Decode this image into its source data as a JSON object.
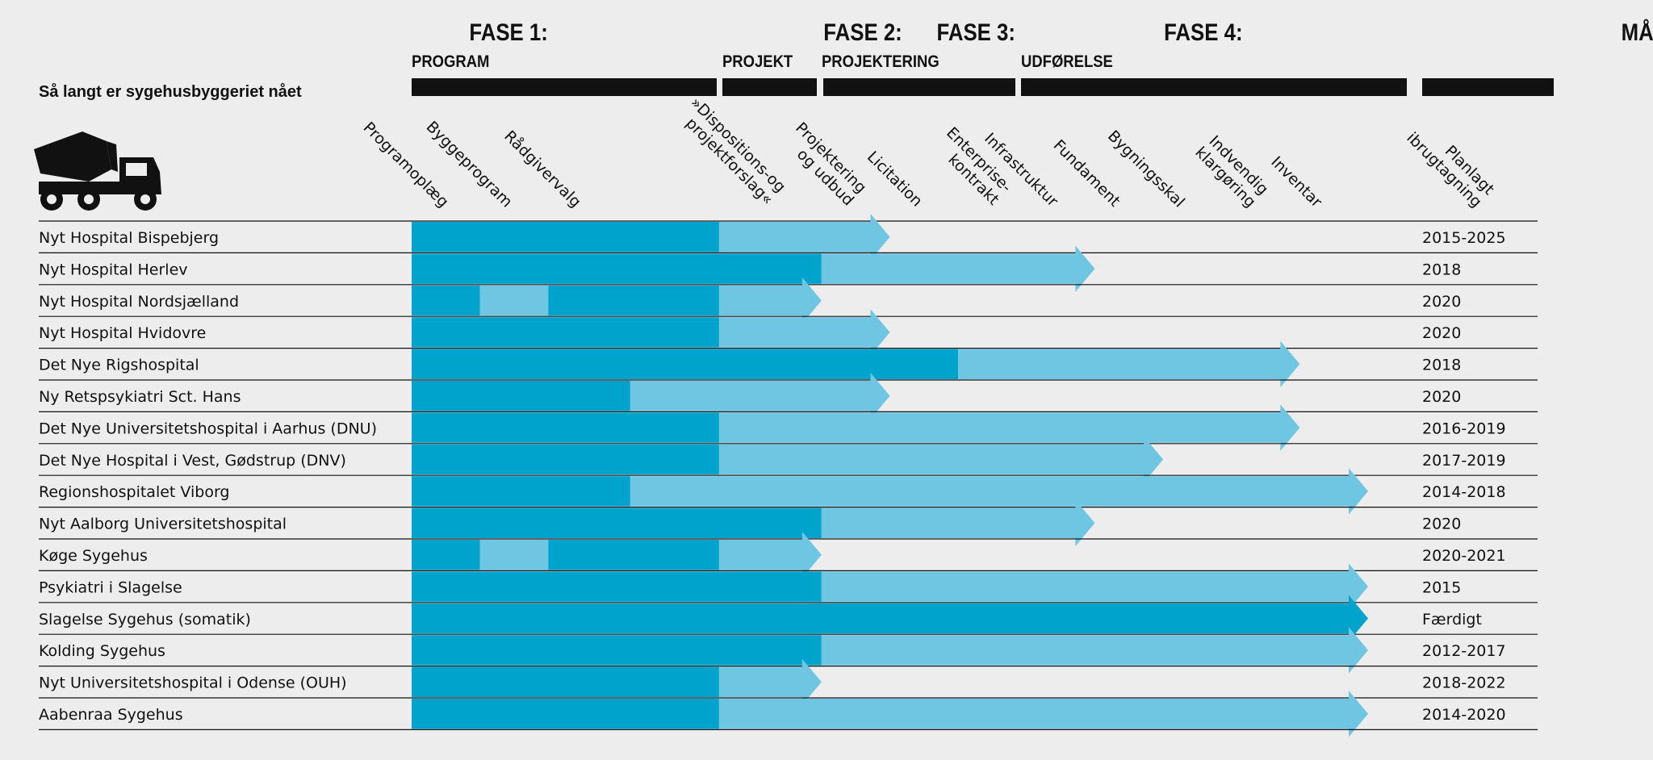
{
  "title": "Så langt er sygehusbyggeriet nået",
  "phases": [
    {
      "title": "FASE 1:",
      "subtitle": "PROGRAM"
    },
    {
      "title": "FASE 2:",
      "subtitle": "PROJEKT"
    },
    {
      "title": "FASE 3:",
      "subtitle": "PROJEKTERING"
    },
    {
      "title": "FASE 4:",
      "subtitle": "UDFØRELSE"
    },
    {
      "title": "MÅL:",
      "subtitle": ""
    }
  ],
  "icon": "cement-mixer-truck-icon",
  "colors": {
    "completed": "#00a3cc",
    "in_progress": "#6fc6e2",
    "background": "#ededed",
    "phase_bar": "#111111"
  },
  "chart_data": {
    "type": "gantt",
    "stages": [
      [
        "Programoplæg"
      ],
      [
        "Byggeprogram"
      ],
      [
        "Rådgivervalg"
      ],
      [
        "»Dispositions-og",
        "projektforslag«"
      ],
      [
        "Projektering",
        "og udbud"
      ],
      [
        "Licitation"
      ],
      [
        "Enterprise-",
        "kontrakt"
      ],
      [
        "Infrastruktur"
      ],
      [
        "Fundament"
      ],
      [
        "Bygningsskal"
      ],
      [
        "Indvendig",
        "klargøring"
      ],
      [
        "Inventar"
      ],
      [
        "Planlagt",
        "ibrugtagning"
      ]
    ],
    "stage_values_note": "",
    "rows": [
      {
        "name": "Nyt Hospital Bispebjerg",
        "goal": "2015-2025",
        "segments": [
          {
            "from": 0,
            "to": 4.5,
            "status": "completed"
          },
          {
            "from": 4.5,
            "to": 7.0,
            "status": "in_progress"
          }
        ]
      },
      {
        "name": "Nyt Hospital Herlev",
        "goal": "2018",
        "segments": [
          {
            "from": 0,
            "to": 6.0,
            "status": "completed"
          },
          {
            "from": 6.0,
            "to": 10.0,
            "status": "in_progress"
          }
        ]
      },
      {
        "name": "Nyt Hospital Nordsjælland",
        "goal": "2020",
        "segments": [
          {
            "from": 0,
            "to": 1.0,
            "status": "completed"
          },
          {
            "from": 1.0,
            "to": 2.0,
            "status": "in_progress"
          },
          {
            "from": 2.0,
            "to": 4.5,
            "status": "completed"
          },
          {
            "from": 4.5,
            "to": 6.0,
            "status": "in_progress"
          }
        ]
      },
      {
        "name": "Nyt Hospital Hvidovre",
        "goal": "2020",
        "segments": [
          {
            "from": 0,
            "to": 4.5,
            "status": "completed"
          },
          {
            "from": 4.5,
            "to": 7.0,
            "status": "in_progress"
          }
        ]
      },
      {
        "name": "Det Nye Rigshospital",
        "goal": "2018",
        "segments": [
          {
            "from": 0,
            "to": 8.0,
            "status": "completed"
          },
          {
            "from": 8.0,
            "to": 13.0,
            "status": "in_progress"
          }
        ]
      },
      {
        "name": "Ny Retspsykiatri Sct. Hans",
        "goal": "2020",
        "segments": [
          {
            "from": 0,
            "to": 3.2,
            "status": "completed"
          },
          {
            "from": 3.2,
            "to": 7.0,
            "status": "in_progress"
          }
        ]
      },
      {
        "name": "Det Nye Universitetshospital i Aarhus (DNU)",
        "goal": "2016-2019",
        "segments": [
          {
            "from": 0,
            "to": 4.5,
            "status": "completed"
          },
          {
            "from": 4.5,
            "to": 13.0,
            "status": "in_progress"
          }
        ]
      },
      {
        "name": "Det Nye Hospital i Vest, Gødstrup (DNV)",
        "goal": "2017-2019",
        "segments": [
          {
            "from": 0,
            "to": 4.5,
            "status": "completed"
          },
          {
            "from": 4.5,
            "to": 11.0,
            "status": "in_progress"
          }
        ]
      },
      {
        "name": "Regionshospitalet Viborg",
        "goal": "2014-2018",
        "segments": [
          {
            "from": 0,
            "to": 3.2,
            "status": "completed"
          },
          {
            "from": 3.2,
            "to": 14.0,
            "status": "in_progress"
          }
        ]
      },
      {
        "name": "Nyt Aalborg Universitetshospital",
        "goal": "2020",
        "segments": [
          {
            "from": 0,
            "to": 6.0,
            "status": "completed"
          },
          {
            "from": 6.0,
            "to": 10.0,
            "status": "in_progress"
          }
        ]
      },
      {
        "name": "Køge Sygehus",
        "goal": "2020-2021",
        "segments": [
          {
            "from": 0,
            "to": 1.0,
            "status": "completed"
          },
          {
            "from": 1.0,
            "to": 2.0,
            "status": "in_progress"
          },
          {
            "from": 2.0,
            "to": 4.5,
            "status": "completed"
          },
          {
            "from": 4.5,
            "to": 6.0,
            "status": "in_progress"
          }
        ]
      },
      {
        "name": "Psykiatri i Slagelse",
        "goal": "2015",
        "segments": [
          {
            "from": 0,
            "to": 6.0,
            "status": "completed"
          },
          {
            "from": 6.0,
            "to": 14.0,
            "status": "in_progress"
          }
        ]
      },
      {
        "name": "Slagelse Sygehus (somatik)",
        "goal": "Færdigt",
        "segments": [
          {
            "from": 0,
            "to": 14.0,
            "status": "completed"
          }
        ]
      },
      {
        "name": "Kolding Sygehus",
        "goal": "2012-2017",
        "segments": [
          {
            "from": 0,
            "to": 6.0,
            "status": "completed"
          },
          {
            "from": 6.0,
            "to": 14.0,
            "status": "in_progress"
          }
        ]
      },
      {
        "name": "Nyt Universitetshospital i Odense (OUH)",
        "goal": "2018-2022",
        "segments": [
          {
            "from": 0,
            "to": 4.5,
            "status": "completed"
          },
          {
            "from": 4.5,
            "to": 6.0,
            "status": "in_progress"
          }
        ]
      },
      {
        "name": "Aabenraa Sygehus",
        "goal": "2014-2020",
        "segments": [
          {
            "from": 0,
            "to": 4.5,
            "status": "completed"
          },
          {
            "from": 4.5,
            "to": 14.0,
            "status": "in_progress"
          }
        ]
      }
    ]
  }
}
